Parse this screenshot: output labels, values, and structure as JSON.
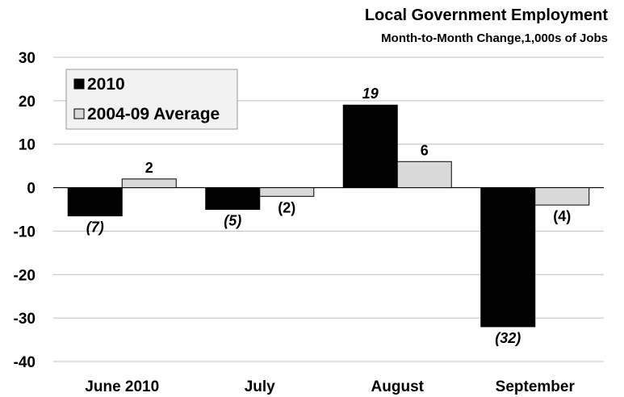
{
  "chart_data": {
    "type": "bar",
    "title": "Local Government Employment",
    "subtitle": "Month-to-Month Change,1,000s of Jobs",
    "categories": [
      "June 2010",
      "July",
      "August",
      "September"
    ],
    "series": [
      {
        "name": "2010",
        "values": [
          -6.5,
          -5,
          19,
          -32
        ],
        "labels": [
          "(7)",
          "(5)",
          "19",
          "(32)"
        ],
        "color": "#000000",
        "label_style": "italic"
      },
      {
        "name": "2004-09 Average",
        "values": [
          2,
          -2,
          6,
          -4
        ],
        "labels": [
          "2",
          "(2)",
          "6",
          "(4)"
        ],
        "color": "#d9d9d9",
        "label_style": "normal"
      }
    ],
    "ylim": [
      -40,
      30
    ],
    "yticks": [
      30,
      20,
      10,
      0,
      -10,
      -20,
      -30,
      -40
    ],
    "grid": true,
    "legend_position": "top-left"
  }
}
